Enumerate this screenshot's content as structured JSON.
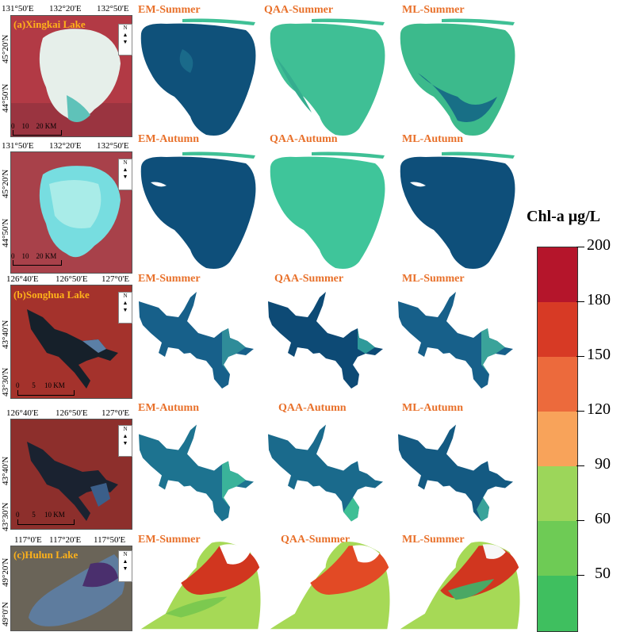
{
  "row1": {
    "coords_top": [
      "131°50'E",
      "132°20'E",
      "132°50'E"
    ],
    "coords_left": [
      "45°20'N",
      "44°50'N"
    ],
    "lake_label": "(a)Xingkai Lake",
    "scale": [
      "0",
      "10",
      "20 KM"
    ],
    "panels": [
      "EM-Summer",
      "QAA-Summer",
      "ML-Summer"
    ]
  },
  "row2": {
    "coords_top": [
      "131°50'E",
      "132°20'E",
      "132°50'E"
    ],
    "coords_left": [
      "45°20'N",
      "44°50'N"
    ],
    "scale": [
      "0",
      "10",
      "20 KM"
    ],
    "panels": [
      "EM-Autumn",
      "QAA-Autumn",
      "ML-Autumn"
    ]
  },
  "row3": {
    "coords_top": [
      "126°40'E",
      "126°50'E",
      "127°0'E"
    ],
    "coords_left": [
      "43°40'N",
      "43°30'N"
    ],
    "lake_label": "(b)Songhua Lake",
    "scale": [
      "0",
      "5",
      "10 KM"
    ],
    "panels": [
      "EM-Summer",
      "QAA-Summer",
      "ML-Summer"
    ]
  },
  "row4": {
    "coords_top": [
      "126°40'E",
      "126°50'E",
      "127°0'E"
    ],
    "coords_left": [
      "43°40'N",
      "43°30'N"
    ],
    "scale": [
      "0",
      "5",
      "10 KM"
    ],
    "panels": [
      "EM-Autumn",
      "QAA-Autumn",
      "ML-Autumn"
    ]
  },
  "row5": {
    "coords_top": [
      "117°0'E",
      "117°20'E",
      "117°50'E"
    ],
    "coords_left": [
      "49°20'N",
      "49°0'N"
    ],
    "lake_label": "(c)Hulun Lake",
    "panels": [
      "EM-Summer",
      "QAA-Summer",
      "ML-Summer"
    ]
  },
  "north_arrow": "N",
  "legend": {
    "title": "Chl-a μg/L",
    "ticks": [
      "200",
      "180",
      "150",
      "120",
      "90",
      "60",
      "50"
    ],
    "colors": [
      "#b5152b",
      "#d73a25",
      "#ec6a3c",
      "#f8a35a",
      "#9cd65a",
      "#6ecb55",
      "#3fbf5f"
    ]
  },
  "colors": {
    "deep": "#0e4f7a",
    "mid": "#1d7f8f",
    "teal": "#3aa39a",
    "aqua": "#3fc095",
    "green": "#4cc27a",
    "red": "#d1361f",
    "orange": "#f08a3c",
    "lime": "#a6d956"
  }
}
